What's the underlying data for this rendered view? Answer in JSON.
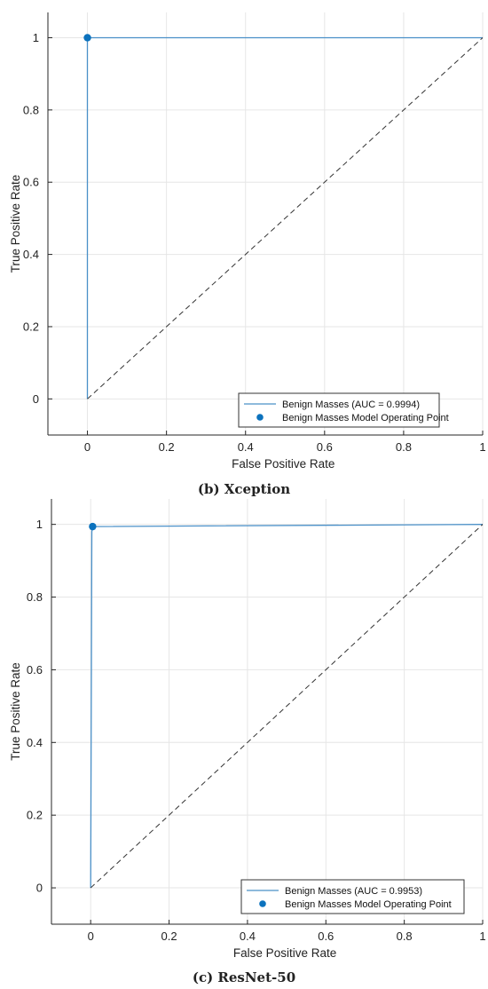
{
  "chart_data": [
    {
      "type": "line",
      "caption": "(b) Xception",
      "xlabel": "False Positive Rate",
      "ylabel": "True Positive Rate",
      "xlim": [
        -0.1,
        1.0
      ],
      "ylim": [
        -0.1,
        1.07
      ],
      "xticks": [
        "0",
        "0.2",
        "0.4",
        "0.6",
        "0.8",
        "1"
      ],
      "yticks": [
        "0",
        "0.2",
        "0.4",
        "0.6",
        "0.8",
        "1"
      ],
      "grid": true,
      "legend_position": "bottom-right",
      "series": [
        {
          "name": "Benign Masses (AUC = 0.9994)",
          "kind": "line",
          "x": [
            0,
            0,
            0.002,
            1
          ],
          "y": [
            0,
            0.998,
            1.0,
            1.0
          ]
        },
        {
          "name": "Benign Masses Model Operating Point",
          "kind": "point",
          "x": [
            0
          ],
          "y": [
            1.0
          ]
        },
        {
          "name": "",
          "kind": "diagonal",
          "x": [
            0,
            1
          ],
          "y": [
            0,
            1
          ]
        }
      ]
    },
    {
      "type": "line",
      "caption": "(c) ResNet-50",
      "xlabel": "False Positive Rate",
      "ylabel": "True Positive Rate",
      "xlim": [
        -0.1,
        1.0
      ],
      "ylim": [
        -0.1,
        1.07
      ],
      "xticks": [
        "0",
        "0.2",
        "0.4",
        "0.6",
        "0.8",
        "1"
      ],
      "yticks": [
        "0",
        "0.2",
        "0.4",
        "0.6",
        "0.8",
        "1"
      ],
      "grid": true,
      "legend_position": "bottom-right",
      "series": [
        {
          "name": "Benign Masses (AUC = 0.9953)",
          "kind": "line",
          "x": [
            0,
            0.003,
            0.005,
            1
          ],
          "y": [
            0,
            0.98,
            0.994,
            1.0
          ]
        },
        {
          "name": "Benign Masses Model Operating Point",
          "kind": "point",
          "x": [
            0.005
          ],
          "y": [
            0.994
          ]
        },
        {
          "name": "",
          "kind": "diagonal",
          "x": [
            0,
            1
          ],
          "y": [
            0,
            1
          ]
        }
      ]
    }
  ],
  "colors": {
    "roc": "#4a90c8",
    "point": "#0c72bd",
    "diagonal": "#333333",
    "grid": "#e6e6e6",
    "axis": "#262626"
  }
}
